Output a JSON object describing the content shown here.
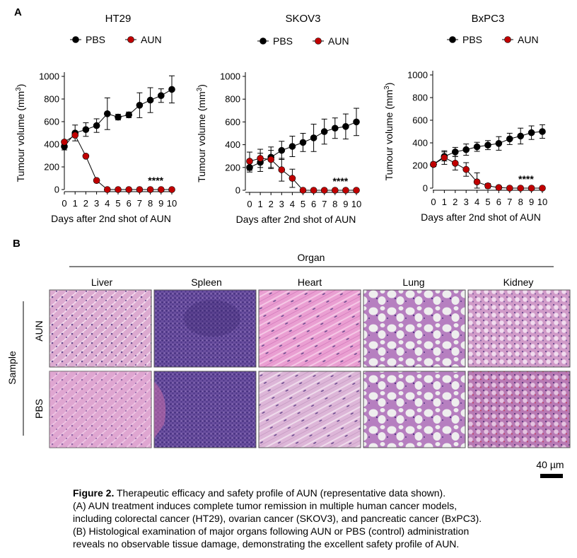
{
  "panel_a": {
    "label": "A"
  },
  "panel_b": {
    "label": "B"
  },
  "chart_data": [
    {
      "type": "line",
      "title": "HT29",
      "xlabel": "Days after 2nd shot of AUN",
      "ylabel_text": "Tumour volume (mm",
      "ylabel_sup": "3",
      "ylabel_close": ")",
      "ylim": [
        0,
        1000
      ],
      "yticks": [
        0,
        200,
        400,
        600,
        800,
        1000
      ],
      "x": [
        0,
        1,
        2,
        3,
        4,
        5,
        6,
        7,
        8,
        9,
        10
      ],
      "significance": "****",
      "series": [
        {
          "name": "PBS",
          "color": "#000000",
          "values": [
            380,
            500,
            530,
            565,
            670,
            640,
            660,
            745,
            790,
            830,
            885
          ],
          "errors": [
            30,
            70,
            60,
            60,
            140,
            25,
            25,
            110,
            110,
            60,
            120
          ]
        },
        {
          "name": "AUN",
          "color": "#c00000",
          "values": [
            420,
            480,
            295,
            80,
            0,
            0,
            0,
            0,
            0,
            0,
            0
          ],
          "errors": [
            0,
            0,
            0,
            0,
            0,
            0,
            0,
            0,
            0,
            0,
            0
          ]
        }
      ]
    },
    {
      "type": "line",
      "title": "SKOV3",
      "xlabel": "Days after 2nd shot of AUN",
      "ylabel_text": "Tumour volume (mm",
      "ylabel_sup": "3",
      "ylabel_close": ")",
      "ylim": [
        0,
        1000
      ],
      "yticks": [
        0,
        200,
        400,
        600,
        800,
        1000
      ],
      "x": [
        0,
        1,
        2,
        3,
        4,
        5,
        6,
        7,
        8,
        9,
        10
      ],
      "significance": "****",
      "series": [
        {
          "name": "PBS",
          "color": "#000000",
          "values": [
            200,
            245,
            290,
            350,
            385,
            420,
            460,
            515,
            545,
            560,
            600
          ],
          "errors": [
            40,
            80,
            90,
            80,
            90,
            80,
            120,
            110,
            90,
            110,
            120
          ]
        },
        {
          "name": "AUN",
          "color": "#c00000",
          "values": [
            255,
            280,
            270,
            180,
            105,
            0,
            0,
            0,
            0,
            0,
            0
          ],
          "errors": [
            80,
            80,
            80,
            100,
            80,
            0,
            0,
            0,
            0,
            0,
            0
          ]
        }
      ]
    },
    {
      "type": "line",
      "title": "BxPC3",
      "xlabel": "Days after 2nd shot of AUN",
      "ylabel_text": "Tumour volume (mm",
      "ylabel_sup": "3",
      "ylabel_close": ")",
      "ylim": [
        0,
        1000
      ],
      "yticks": [
        0,
        200,
        400,
        600,
        800,
        1000
      ],
      "x": [
        0,
        1,
        2,
        3,
        4,
        5,
        6,
        7,
        8,
        9,
        10
      ],
      "significance": "****",
      "series": [
        {
          "name": "PBS",
          "color": "#000000",
          "values": [
            210,
            280,
            320,
            340,
            365,
            380,
            395,
            435,
            460,
            490,
            500
          ],
          "errors": [
            20,
            40,
            40,
            50,
            40,
            40,
            60,
            50,
            70,
            60,
            60
          ]
        },
        {
          "name": "AUN",
          "color": "#c00000",
          "values": [
            210,
            270,
            220,
            165,
            55,
            20,
            5,
            0,
            0,
            0,
            0
          ],
          "errors": [
            0,
            60,
            60,
            60,
            80,
            20,
            5,
            0,
            0,
            0,
            0
          ]
        }
      ]
    }
  ],
  "histology": {
    "organ_title": "Organ",
    "sample_title": "Sample",
    "organs": [
      "Liver",
      "Spleen",
      "Heart",
      "Lung",
      "Kidney"
    ],
    "samples": [
      "AUN",
      "PBS"
    ],
    "scale_bar": "40 µm"
  },
  "colors": {
    "liver": "#d9a4cc",
    "spleen": "#6a4c9e",
    "heart": "#e89fd0",
    "lung_bg": "#eeeeee",
    "lung_tissue": "#b77fc0",
    "kidney": "#cf97c7",
    "aun": "#c00000",
    "pbs": "#000000"
  },
  "caption": {
    "title_bold": "Figure 2.",
    "title_rest": " Therapeutic efficacy and safety profile of AUN (representative data shown).",
    "lines": [
      "(A) AUN treatment induces complete tumor remission in multiple human cancer models,",
      "including colorectal cancer (HT29), ovarian cancer (SKOV3), and pancreatic cancer (BxPC3).",
      "(B) Histological examination of major organs following AUN or PBS (control) administration",
      "reveals no observable tissue damage, demonstrating the excellent safety profile of AUN."
    ]
  }
}
